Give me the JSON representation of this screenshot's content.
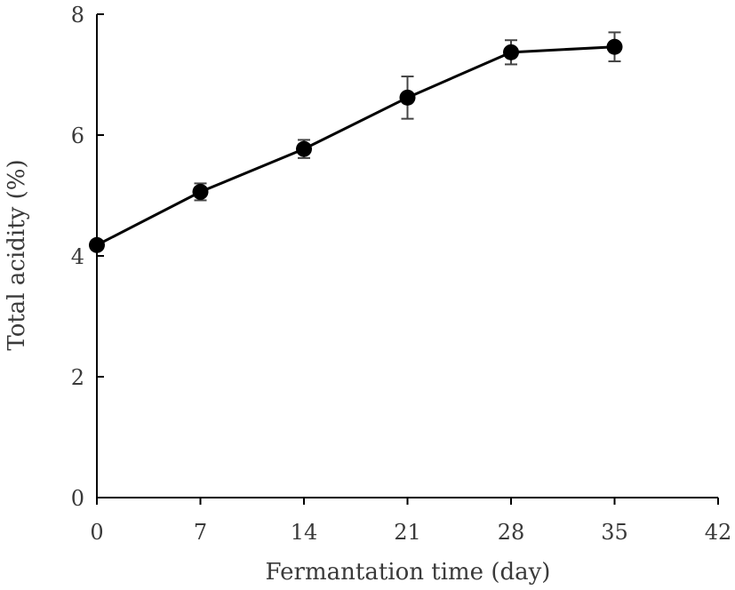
{
  "chart_data": {
    "type": "line",
    "title": "",
    "xlabel": "Fermantation time (day)",
    "ylabel": "Total acidity (%)",
    "xlim": [
      0,
      42
    ],
    "ylim": [
      0,
      8
    ],
    "x_ticks": [
      0,
      7,
      14,
      21,
      28,
      35,
      42
    ],
    "y_ticks": [
      0,
      2,
      4,
      6,
      8
    ],
    "x_tick_labels": [
      "0",
      "7",
      "14",
      "21",
      "28",
      "35",
      "42"
    ],
    "y_tick_labels": [
      "0",
      "2",
      "4",
      "6",
      "8"
    ],
    "grid": false,
    "legend": "none",
    "series": [
      {
        "x": [
          0,
          7,
          14,
          21,
          28,
          35
        ],
        "y": [
          4.18,
          5.06,
          5.77,
          6.62,
          7.37,
          7.46
        ],
        "error": [
          0.05,
          0.14,
          0.15,
          0.35,
          0.2,
          0.24
        ],
        "color": "#000000"
      }
    ]
  }
}
